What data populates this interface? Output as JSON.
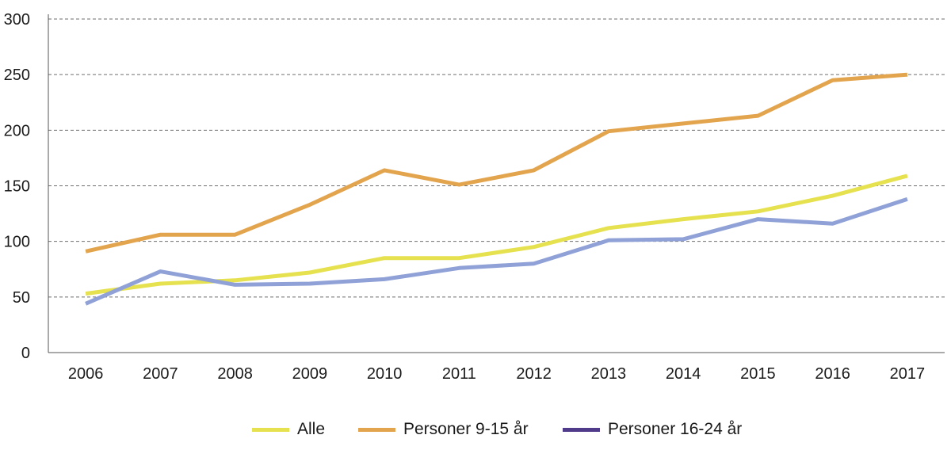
{
  "chart_data": {
    "type": "line",
    "x": [
      "2006",
      "2007",
      "2008",
      "2009",
      "2010",
      "2011",
      "2012",
      "2013",
      "2014",
      "2015",
      "2016",
      "2017"
    ],
    "ylim": [
      0,
      300
    ],
    "yticks": [
      0,
      50,
      100,
      150,
      200,
      250,
      300
    ],
    "grid": "horizontal dashed",
    "legend_position": "bottom",
    "title": "",
    "xlabel": "",
    "ylabel": "",
    "series": [
      {
        "name": "Alle",
        "color": "#e6e14f",
        "values": [
          53,
          62,
          65,
          72,
          85,
          85,
          95,
          112,
          120,
          127,
          141,
          159
        ]
      },
      {
        "name": "Personer 9-15 år",
        "color": "#e3a44e",
        "values": [
          91,
          106,
          106,
          133,
          164,
          151,
          164,
          199,
          206,
          213,
          245,
          250
        ]
      },
      {
        "name": "Personer 16-24 år",
        "color": "#8fa1d6",
        "legend_color": "#4f3b8a",
        "values": [
          44,
          73,
          61,
          62,
          66,
          76,
          80,
          101,
          102,
          120,
          116,
          138
        ]
      }
    ]
  }
}
